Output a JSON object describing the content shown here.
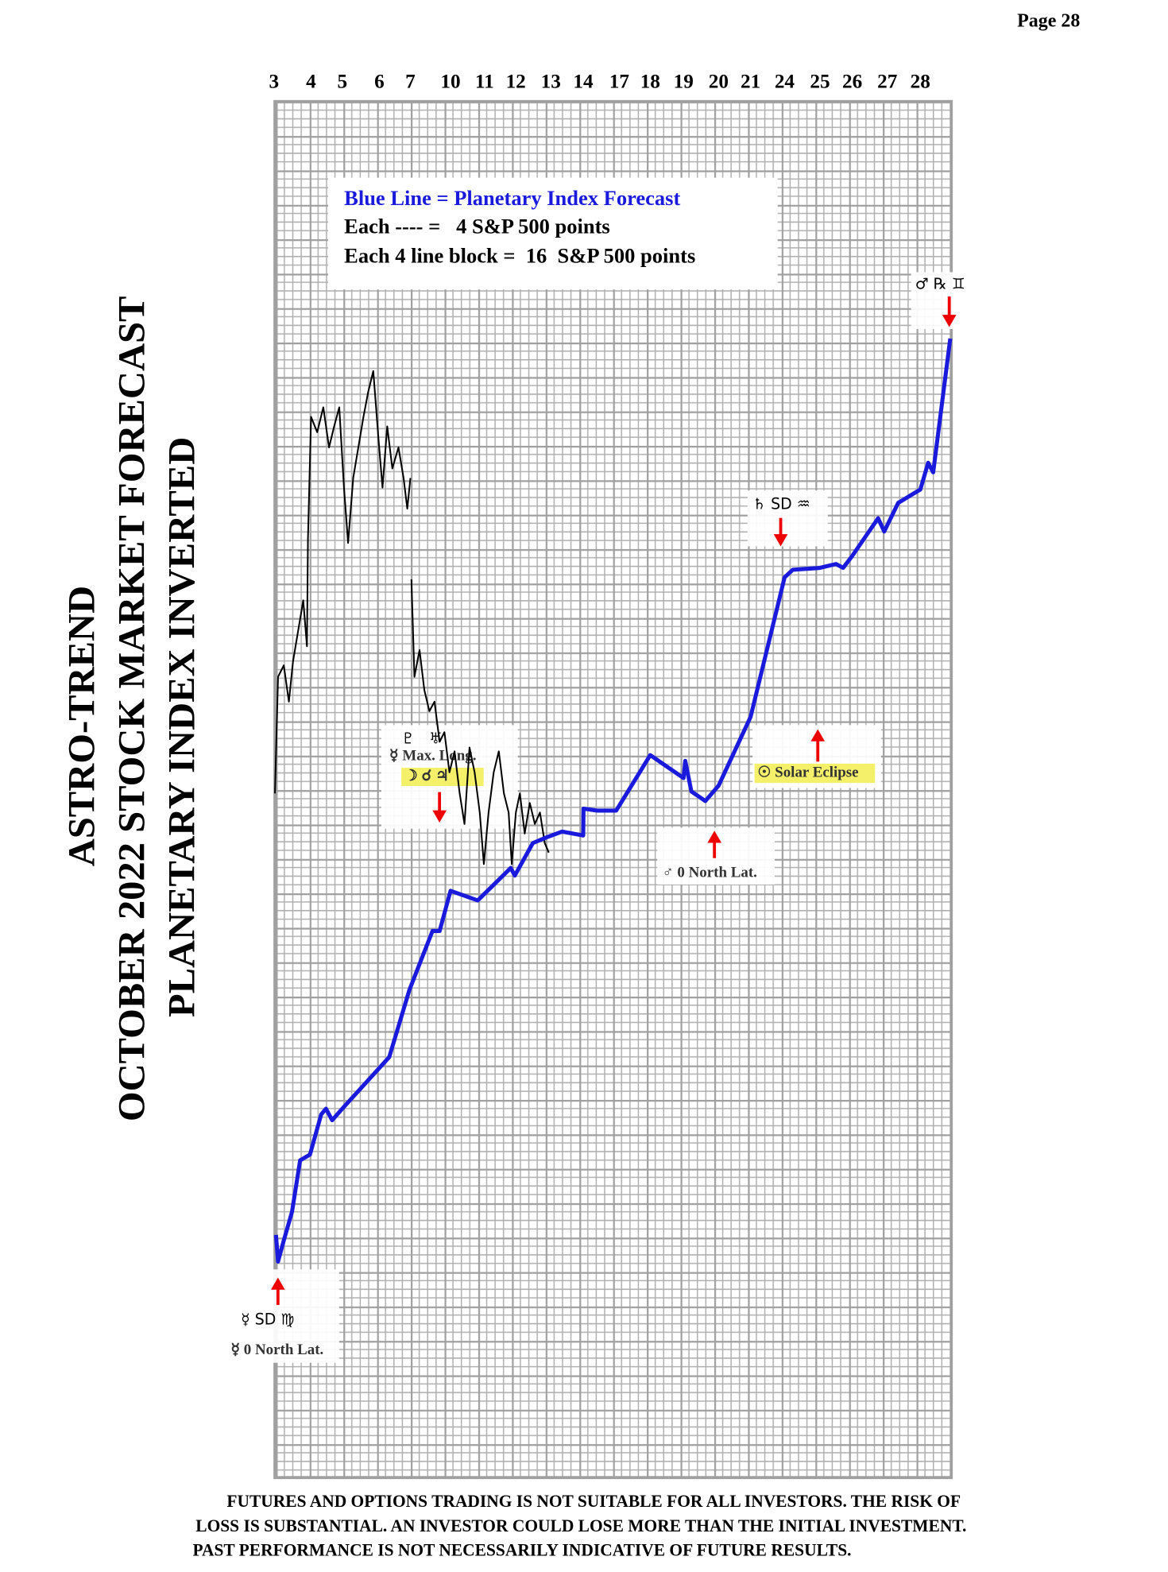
{
  "page_number": "Page  28",
  "disclaimer": [
    "FUTURES AND OPTIONS TRADING IS NOT SUITABLE FOR ALL INVESTORS.  THE RISK OF",
    "LOSS IS SUBSTANTIAL.  AN INVESTOR COULD LOSE MORE THAN THE INITIAL INVESTMENT.",
    "PAST PERFORMANCE IS NOT NECESSARILY INDICATIVE OF FUTURE RESULTS."
  ],
  "chart_data": {
    "type": "line",
    "title": [
      "ASTRO-TREND",
      "OCTOBER 2022 STOCK MARKET FORECAST",
      "PLANETARY INDEX INVERTED"
    ],
    "legend_text": [
      "Blue Line = Planetary Index Forecast",
      "Each ---- =   4 S&P 500 points",
      "Each 4 line block =  16  S&P 500 points"
    ],
    "xlim": [
      0,
      19.88
    ],
    "ylim": [
      0,
      720
    ],
    "xticks": [
      {
        "value": 0,
        "label": "3"
      },
      {
        "value": 1.09,
        "label": "4"
      },
      {
        "value": 2.01,
        "label": "5"
      },
      {
        "value": 3.1,
        "label": "6"
      },
      {
        "value": 4.01,
        "label": "7"
      },
      {
        "value": 5.19,
        "label": "10"
      },
      {
        "value": 6.19,
        "label": "11"
      },
      {
        "value": 7.11,
        "label": "12"
      },
      {
        "value": 8.14,
        "label": "13"
      },
      {
        "value": 9.09,
        "label": "14"
      },
      {
        "value": 10.15,
        "label": "17"
      },
      {
        "value": 11.06,
        "label": "18"
      },
      {
        "value": 12.04,
        "label": "19"
      },
      {
        "value": 13.07,
        "label": "20"
      },
      {
        "value": 14.01,
        "label": "21"
      },
      {
        "value": 15.01,
        "label": "24"
      },
      {
        "value": 16.05,
        "label": "25"
      },
      {
        "value": 17.0,
        "label": "26"
      },
      {
        "value": 18.03,
        "label": "27"
      },
      {
        "value": 19.0,
        "label": "28"
      }
    ],
    "series": [
      {
        "name": "Planetary Index Forecast",
        "color": "#1a1adc",
        "x": [
          0.06,
          0.12,
          0.29,
          0.53,
          0.77,
          1.06,
          1.39,
          1.53,
          1.71,
          2.01,
          3.39,
          3.98,
          4.66,
          4.87,
          5.19,
          5.99,
          6.96,
          7.08,
          7.61,
          8.02,
          8.47,
          9.09,
          9.1,
          9.5,
          10.06,
          11.06,
          12.04,
          12.09,
          12.27,
          12.68,
          13.07,
          14.01,
          15.01,
          15.25,
          16.05,
          16.52,
          16.73,
          16.99,
          17.76,
          17.94,
          18.35,
          19.0,
          19.23,
          19.38,
          19.88
        ],
        "values": [
          127,
          113,
          124,
          139,
          166,
          169,
          190,
          193,
          187,
          193,
          220,
          255,
          286,
          286,
          307,
          302,
          319,
          315,
          332,
          335,
          338,
          336,
          350,
          349,
          349,
          378,
          366,
          375,
          359,
          354,
          362,
          398,
          471,
          475,
          476,
          478,
          476,
          482,
          502,
          495,
          510,
          517,
          531,
          526,
          596
        ]
      },
      {
        "name": "S&P 500",
        "color": "#000000",
        "x": [
          0.03,
          0.12,
          0.29,
          0.44,
          0.56,
          0.71,
          0.86,
          0.97,
          1.0,
          1.09,
          1.27,
          1.45,
          1.62,
          1.77,
          1.92,
          2.06,
          2.18,
          2.33,
          2.48,
          2.63,
          2.77,
          2.92,
          3.07,
          3.19,
          3.33,
          3.48,
          3.66,
          3.81,
          3.92,
          4.01,
          null,
          4.04,
          4.13,
          4.28,
          4.42,
          4.57,
          4.72,
          4.87,
          5.01,
          5.16,
          5.31,
          5.46,
          5.6,
          5.75,
          5.9,
          6.05,
          6.17,
          6.31,
          6.46,
          6.61,
          6.76,
          6.9,
          6.99,
          7.11,
          7.23,
          7.37,
          7.52,
          7.67,
          7.82,
          7.96,
          8.08
        ],
        "values": [
          358,
          419,
          425,
          406,
          427,
          443,
          459,
          435,
          491,
          555,
          547,
          560,
          539,
          550,
          560,
          518,
          489,
          523,
          539,
          555,
          568,
          579,
          544,
          518,
          550,
          528,
          539,
          523,
          507,
          523,
          null,
          470,
          419,
          433,
          412,
          401,
          406,
          385,
          390,
          369,
          380,
          358,
          342,
          382,
          369,
          348,
          321,
          348,
          369,
          380,
          358,
          348,
          321,
          348,
          358,
          337,
          353,
          342,
          348,
          332,
          327
        ]
      }
    ],
    "annotations": [
      {
        "symbols": "☿ SD ♍",
        "text": "☿ 0 North Lat."
      },
      {
        "symbols": "♇   ♅",
        "text": "☿ Max. Long.",
        "highlight": "☽ ☌ ♃"
      },
      {
        "text": "♂ 0 North Lat."
      },
      {
        "highlight": "☉ Solar Eclipse"
      },
      {
        "symbols": "♄ SD ♒"
      },
      {
        "symbols": "♂ ℞ ♊"
      }
    ]
  }
}
